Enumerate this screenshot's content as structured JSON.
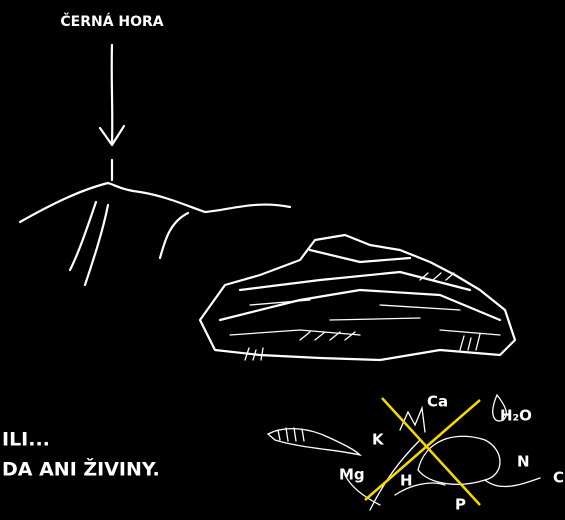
{
  "label": "ČERNÁ HORA",
  "caption": {
    "line1": "ILI...",
    "line2": "DA ANI ŽIVINY."
  },
  "nutrients": {
    "ca": "Ca",
    "water": "H₂O",
    "k": "K",
    "n": "N",
    "mg": "Mg",
    "h": "H",
    "p": "P",
    "c": "C"
  }
}
